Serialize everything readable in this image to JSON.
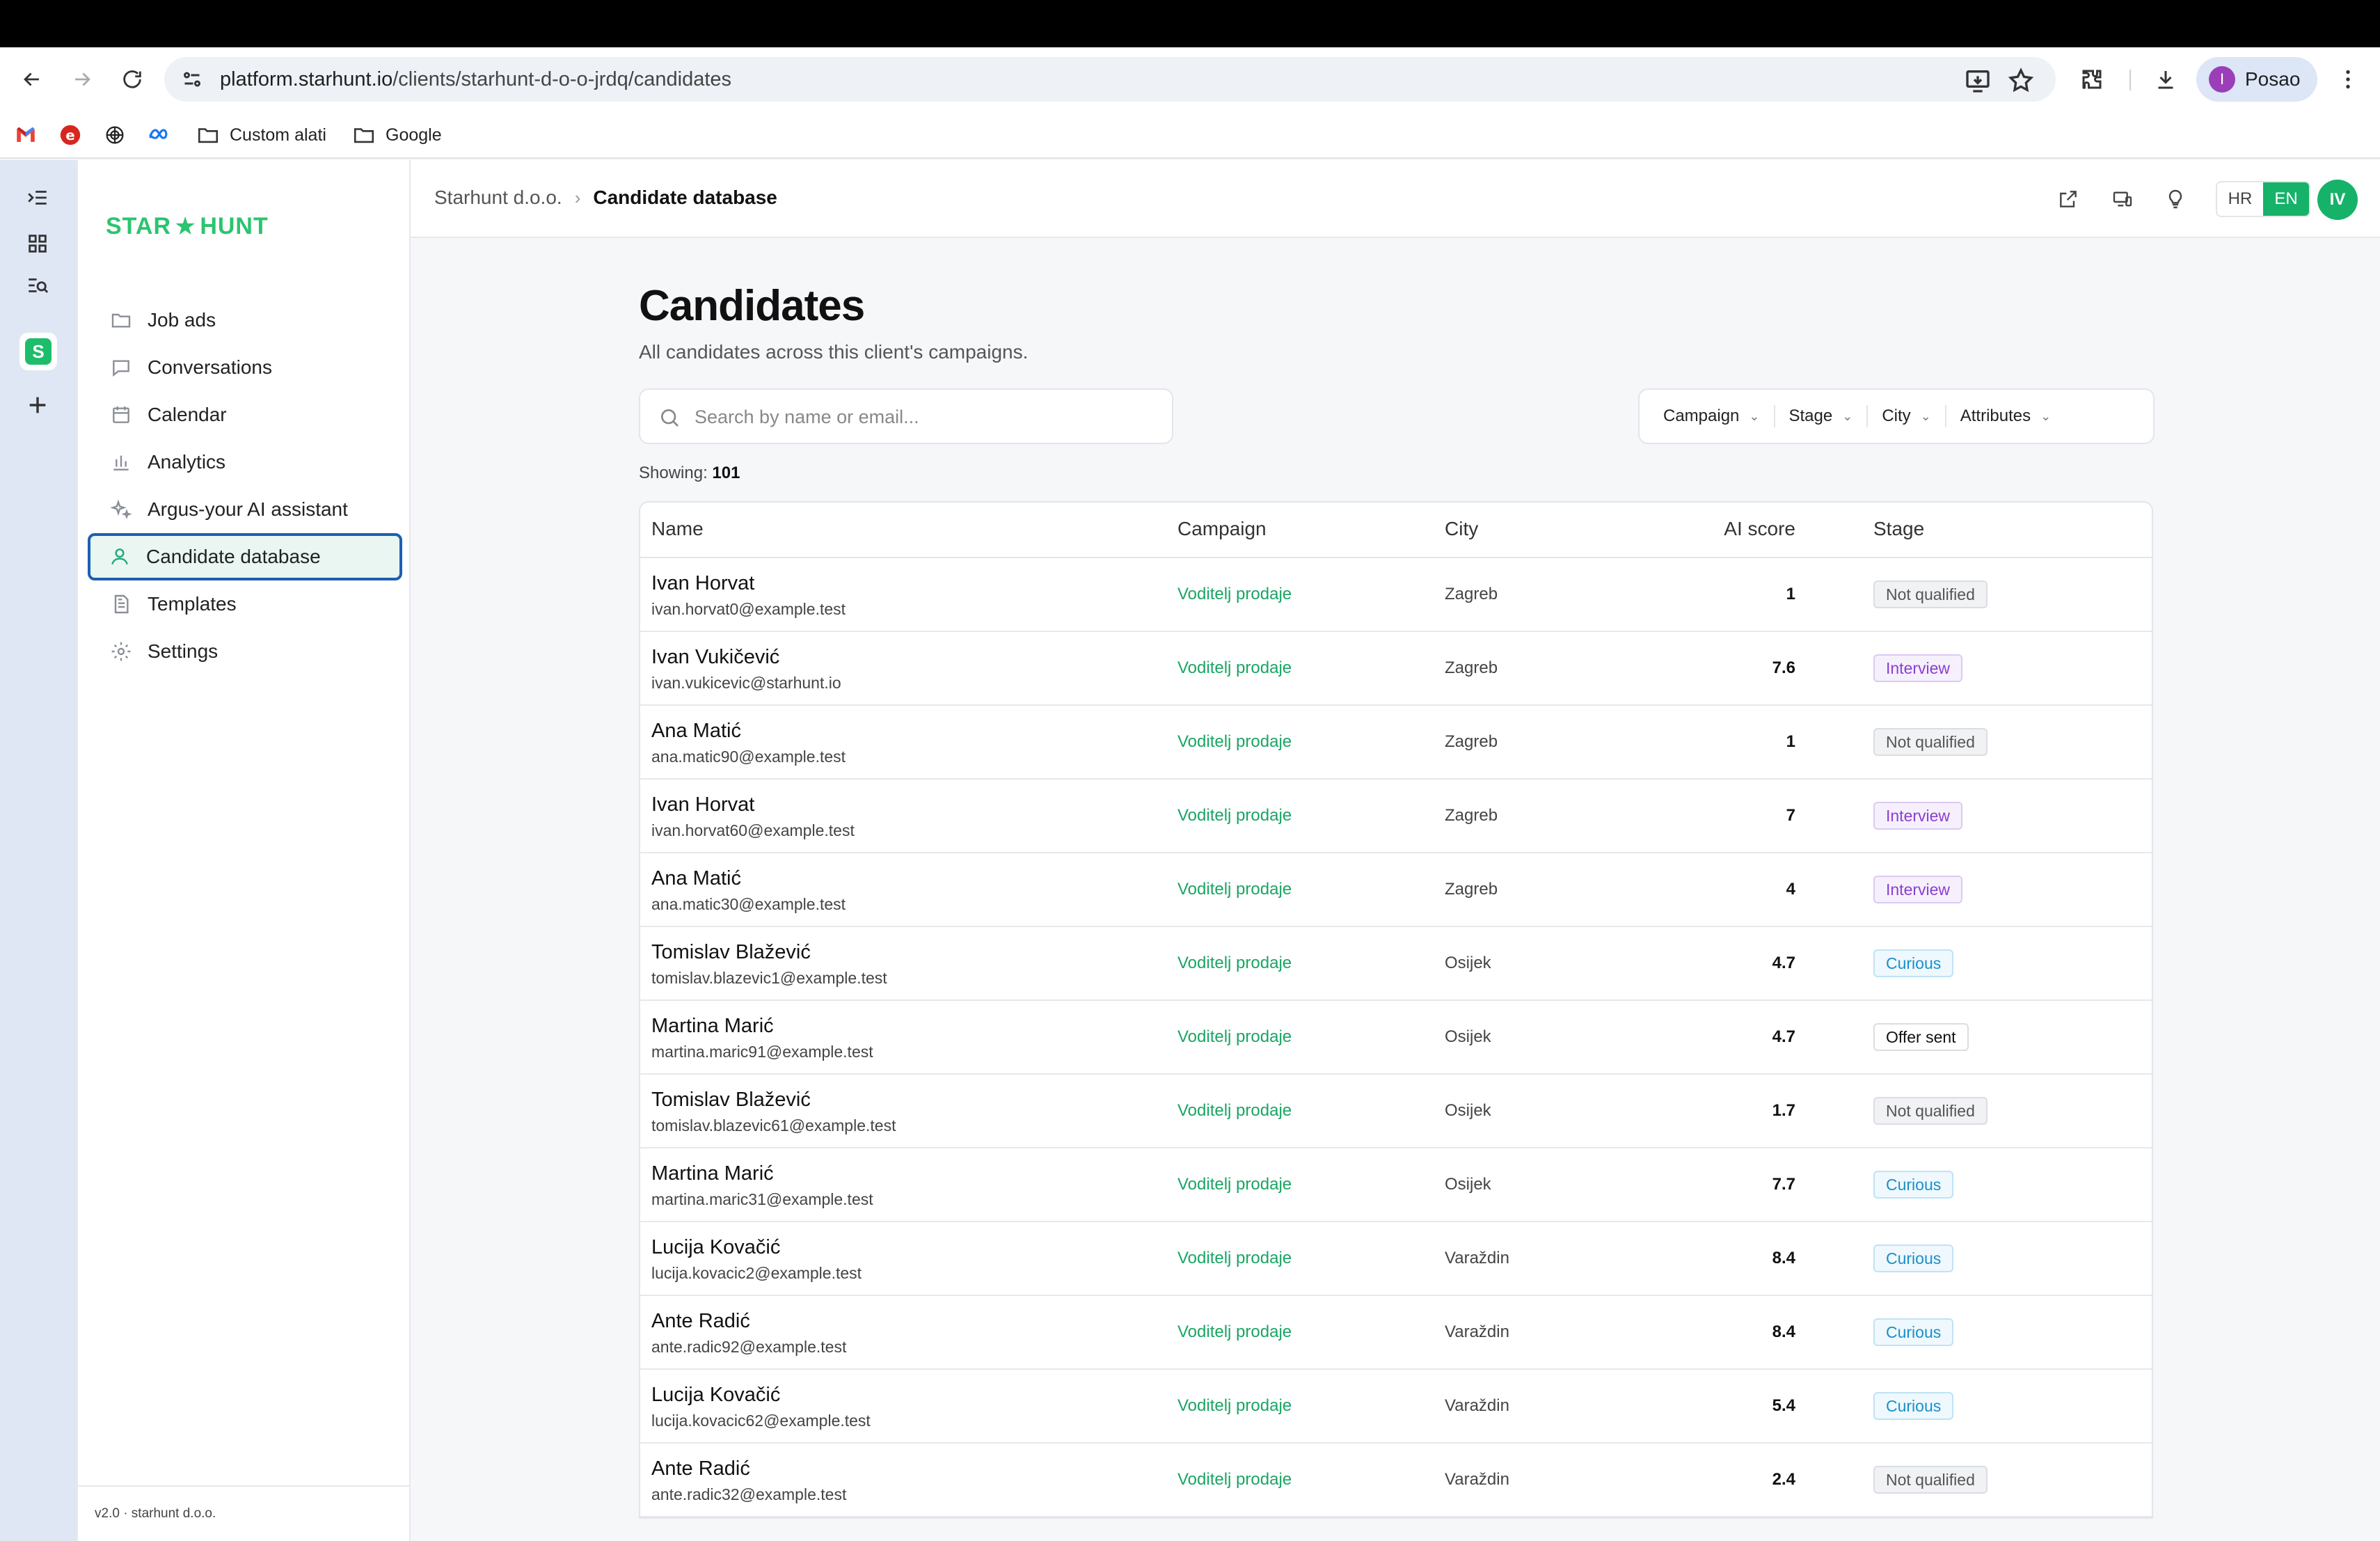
{
  "browser": {
    "url_host": "platform.starhunt.io",
    "url_path": "/clients/starhunt-d-o-o-jrdq/candidates",
    "profile_initial": "I",
    "profile_name": "Posao",
    "bookmarks": [
      "Custom alati",
      "Google"
    ]
  },
  "sidebar": {
    "logo_left": "STAR",
    "logo_star": "★",
    "logo_right": "HUNT",
    "items": [
      {
        "label": "Job ads",
        "icon": "folder-icon"
      },
      {
        "label": "Conversations",
        "icon": "chat-icon"
      },
      {
        "label": "Calendar",
        "icon": "calendar-icon"
      },
      {
        "label": "Analytics",
        "icon": "bar-chart-icon"
      },
      {
        "label": "Argus-your AI assistant",
        "icon": "sparkles-icon"
      },
      {
        "label": "Candidate database",
        "icon": "user-icon"
      },
      {
        "label": "Templates",
        "icon": "document-icon"
      },
      {
        "label": "Settings",
        "icon": "gear-icon"
      }
    ],
    "footer": "v2.0 · starhunt d.o.o."
  },
  "appbar": {
    "crumb_parent": "Starhunt d.o.o.",
    "crumb_separator": "›",
    "crumb_current": "Candidate database",
    "lang_hr": "HR",
    "lang_en": "EN",
    "user_initials": "IV"
  },
  "page": {
    "title": "Candidates",
    "subtitle": "All candidates across this client's campaigns.",
    "search_placeholder": "Search by name or email...",
    "filters": [
      "Campaign",
      "Stage",
      "City",
      "Attributes"
    ],
    "showing_label": "Showing:",
    "showing_count": "101"
  },
  "table": {
    "headers": {
      "name": "Name",
      "campaign": "Campaign",
      "city": "City",
      "score": "AI score",
      "stage": "Stage"
    },
    "rows": [
      {
        "name": "Ivan Horvat",
        "email": "ivan.horvat0@example.test",
        "campaign": "Voditelj prodaje",
        "city": "Zagreb",
        "score": "1",
        "stage": "Not qualified"
      },
      {
        "name": "Ivan Vukičević",
        "email": "ivan.vukicevic@starhunt.io",
        "campaign": "Voditelj prodaje",
        "city": "Zagreb",
        "score": "7.6",
        "stage": "Interview"
      },
      {
        "name": "Ana Matić",
        "email": "ana.matic90@example.test",
        "campaign": "Voditelj prodaje",
        "city": "Zagreb",
        "score": "1",
        "stage": "Not qualified"
      },
      {
        "name": "Ivan Horvat",
        "email": "ivan.horvat60@example.test",
        "campaign": "Voditelj prodaje",
        "city": "Zagreb",
        "score": "7",
        "stage": "Interview"
      },
      {
        "name": "Ana Matić",
        "email": "ana.matic30@example.test",
        "campaign": "Voditelj prodaje",
        "city": "Zagreb",
        "score": "4",
        "stage": "Interview"
      },
      {
        "name": "Tomislav Blažević",
        "email": "tomislav.blazevic1@example.test",
        "campaign": "Voditelj prodaje",
        "city": "Osijek",
        "score": "4.7",
        "stage": "Curious"
      },
      {
        "name": "Martina Marić",
        "email": "martina.maric91@example.test",
        "campaign": "Voditelj prodaje",
        "city": "Osijek",
        "score": "4.7",
        "stage": "Offer sent"
      },
      {
        "name": "Tomislav Blažević",
        "email": "tomislav.blazevic61@example.test",
        "campaign": "Voditelj prodaje",
        "city": "Osijek",
        "score": "1.7",
        "stage": "Not qualified"
      },
      {
        "name": "Martina Marić",
        "email": "martina.maric31@example.test",
        "campaign": "Voditelj prodaje",
        "city": "Osijek",
        "score": "7.7",
        "stage": "Curious"
      },
      {
        "name": "Lucija Kovačić",
        "email": "lucija.kovacic2@example.test",
        "campaign": "Voditelj prodaje",
        "city": "Varaždin",
        "score": "8.4",
        "stage": "Curious"
      },
      {
        "name": "Ante Radić",
        "email": "ante.radic92@example.test",
        "campaign": "Voditelj prodaje",
        "city": "Varaždin",
        "score": "8.4",
        "stage": "Curious"
      },
      {
        "name": "Lucija Kovačić",
        "email": "lucija.kovacic62@example.test",
        "campaign": "Voditelj prodaje",
        "city": "Varaždin",
        "score": "5.4",
        "stage": "Curious"
      },
      {
        "name": "Ante Radić",
        "email": "ante.radic32@example.test",
        "campaign": "Voditelj prodaje",
        "city": "Varaždin",
        "score": "2.4",
        "stage": "Not qualified"
      }
    ]
  },
  "stage_colors": {
    "Not qualified": {
      "fg": "#555555",
      "bg": "#f1f2f4",
      "border": "#dadde2"
    },
    "Interview": {
      "fg": "#8a3fd1",
      "bg": "#f6f0fd",
      "border": "#dcc9f4"
    },
    "Curious": {
      "fg": "#1a8fc9",
      "bg": "#eef8fd",
      "border": "#bfe3f5"
    },
    "Offer sent": {
      "fg": "#111111",
      "bg": "#ffffff",
      "border": "#dadde2"
    }
  },
  "colors": {
    "accent": "#17b26a",
    "active_outline": "#1d5fb3"
  }
}
